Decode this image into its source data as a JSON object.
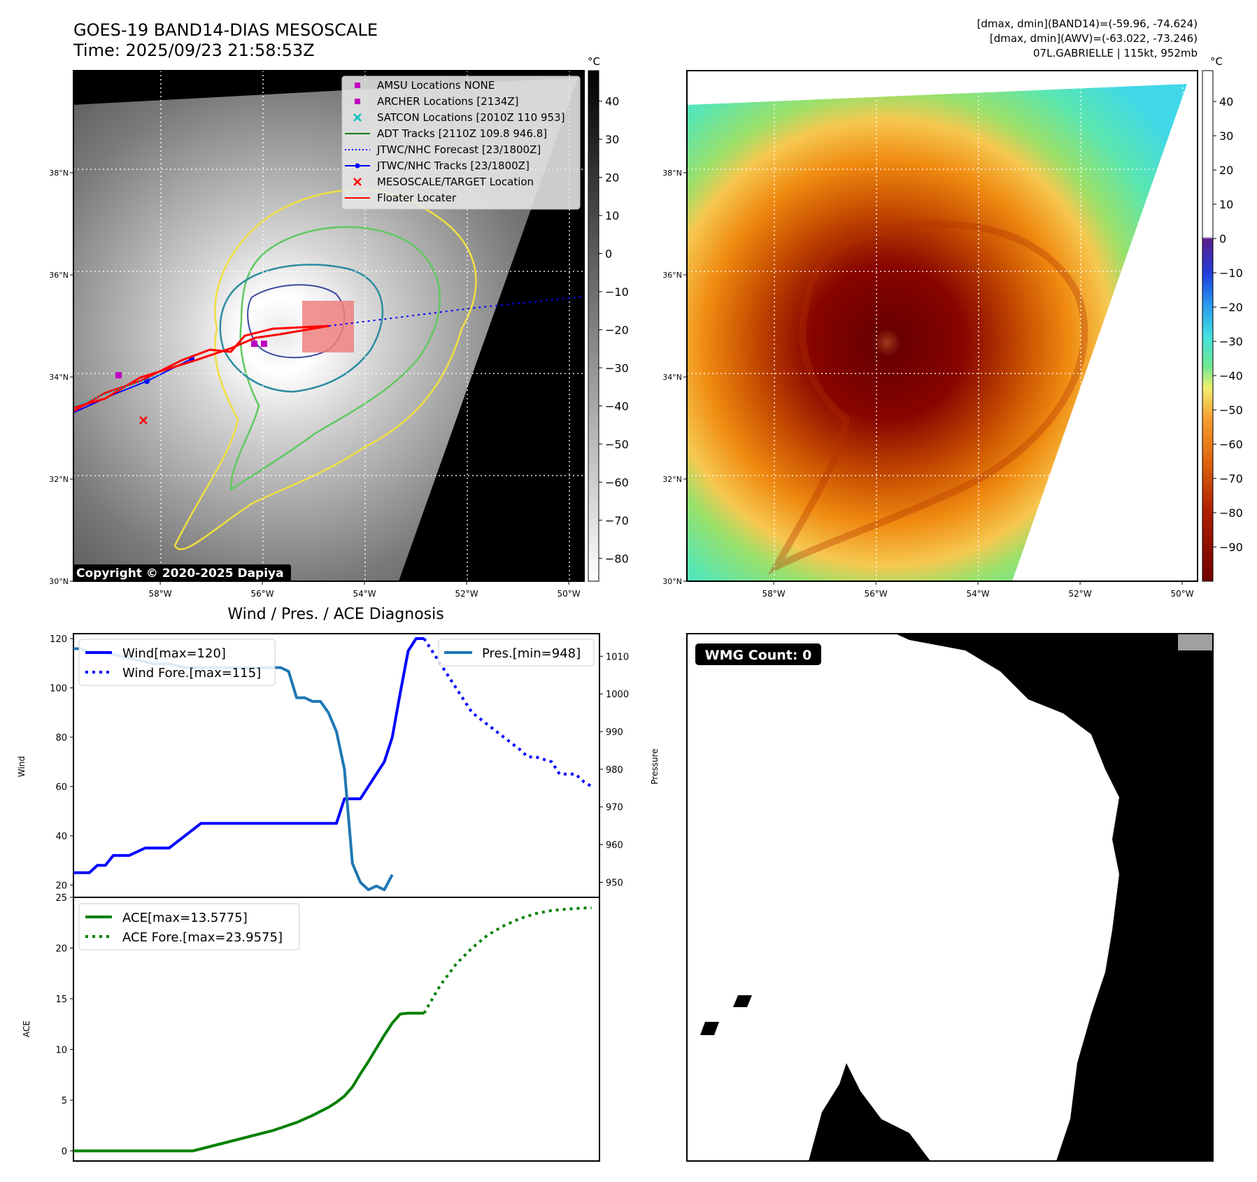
{
  "header": {
    "title_line1": "GOES-19 BAND14-DIAS MESOSCALE",
    "title_line2": "Time: 2025/09/23 21:58:53Z",
    "info_line1": "[dmax, dmin](BAND14)=(-59.96, -74.624)",
    "info_line2": "[dmax, dmin](AWV)=(-63.022, -73.246)",
    "info_line3": "07L.GABRIELLE | 115kt, 952mb"
  },
  "map": {
    "lat_labels": [
      "38°N",
      "36°N",
      "34°N",
      "32°N",
      "30°N"
    ],
    "lat_values": [
      38,
      36,
      34,
      32,
      30
    ],
    "lon_labels": [
      "58°W",
      "56°W",
      "54°W",
      "52°W",
      "50°W"
    ],
    "lon_values": [
      -58,
      -56,
      -54,
      -52,
      -50
    ],
    "extent": {
      "lon_min": -59.7,
      "lon_max": -49.7,
      "lat_min": 30,
      "lat_max": 40
    },
    "copyright": "Copyright © 2020-2025 Dapiya",
    "legend": [
      {
        "label": "AMSU Locations NONE",
        "marker": "square",
        "color": "#c000c0"
      },
      {
        "label": "ARCHER Locations [2134Z]",
        "marker": "square",
        "color": "#c000c0"
      },
      {
        "label": "SATCON Locations [2010Z 110 953]",
        "marker": "x",
        "color": "#00bfbf"
      },
      {
        "label": "ADT Tracks [2110Z 109.8 946.8]",
        "marker": "line",
        "color": "#008000"
      },
      {
        "label": "JTWC/NHC Forecast [23/1800Z]",
        "marker": "dotted",
        "color": "#0000ff"
      },
      {
        "label": "JTWC/NHC Tracks [23/1800Z]",
        "marker": "line-dot",
        "color": "#0000ff"
      },
      {
        "label": "MESOSCALE/TARGET Location",
        "marker": "x",
        "color": "#ff0000"
      },
      {
        "label": "Floater Locater",
        "marker": "line",
        "color": "#ff0000"
      }
    ]
  },
  "colorbar_left": {
    "unit": "°C",
    "ticks": [
      "40",
      "30",
      "20",
      "10",
      "0",
      "−10",
      "−20",
      "−30",
      "−40",
      "−50",
      "−60",
      "−70",
      "−80"
    ],
    "tick_values": [
      40,
      30,
      20,
      10,
      0,
      -10,
      -20,
      -30,
      -40,
      -50,
      -60,
      -70,
      -80
    ],
    "range": [
      48,
      -86
    ]
  },
  "colorbar_right": {
    "unit": "°C",
    "ticks": [
      "40",
      "30",
      "20",
      "10",
      "0",
      "−10",
      "−20",
      "−30",
      "−40",
      "−50",
      "−60",
      "−70",
      "−80",
      "−90"
    ],
    "tick_values": [
      40,
      30,
      20,
      10,
      0,
      -10,
      -20,
      -30,
      -40,
      -50,
      -60,
      -70,
      -80,
      -90
    ],
    "range": [
      49,
      -100
    ]
  },
  "wmg": {
    "label": "WMG Count: 0"
  },
  "chart_data": [
    {
      "type": "line",
      "title": "Wind / Pres. / ACE Diagnosis",
      "ylabel": "Wind",
      "ylabel_right": "Pressure",
      "ylim": [
        15,
        122
      ],
      "ylim_right": [
        946,
        1016
      ],
      "yticks": [
        20,
        40,
        60,
        80,
        100,
        120
      ],
      "yticks_right": [
        950,
        960,
        970,
        980,
        990,
        1000,
        1010
      ],
      "legend_left": [
        "Wind[max=120]",
        "Wind Fore.[max=115]"
      ],
      "legend_right": [
        "Pres.[min=948]"
      ],
      "xlim": [
        0,
        66
      ],
      "series": [
        {
          "name": "Wind[max=120]",
          "axis": "left",
          "style": "solid",
          "color": "#0000ff",
          "x": [
            0,
            2,
            3,
            4,
            5,
            6,
            7,
            9,
            10,
            12,
            14,
            16,
            17,
            18,
            20,
            22,
            24,
            25,
            27,
            28,
            30,
            32,
            33,
            34,
            35,
            36,
            37,
            38,
            39,
            40,
            41,
            42,
            43,
            44
          ],
          "values": [
            25,
            25,
            28,
            28,
            32,
            32,
            32,
            35,
            35,
            35,
            40,
            45,
            45,
            45,
            45,
            45,
            45,
            45,
            45,
            45,
            45,
            45,
            45,
            55,
            55,
            55,
            60,
            65,
            70,
            80,
            98,
            115,
            120,
            120
          ]
        },
        {
          "name": "Wind Fore.[max=115]",
          "axis": "left",
          "style": "dotted",
          "color": "#0000ff",
          "x": [
            44,
            45,
            46,
            48,
            50,
            52,
            54,
            56,
            57,
            58,
            60,
            61,
            62,
            63,
            64,
            65
          ],
          "values": [
            120,
            115,
            110,
            100,
            90,
            85,
            80,
            75,
            72,
            72,
            70,
            65,
            65,
            65,
            62,
            60
          ]
        },
        {
          "name": "Pres.[min=948]",
          "axis": "right",
          "style": "solid",
          "color": "#1f77b4",
          "x": [
            0,
            1,
            2,
            4,
            6,
            8,
            10,
            12,
            14,
            16,
            18,
            20,
            22,
            24,
            26,
            27,
            28,
            29,
            30,
            31,
            32,
            33,
            34,
            35,
            36,
            37,
            38,
            39,
            40
          ],
          "values": [
            1012,
            1012,
            1011,
            1011,
            1010,
            1009,
            1008,
            1008,
            1007,
            1007,
            1007,
            1007,
            1007,
            1007,
            1007,
            1006,
            999,
            999,
            998,
            998,
            995,
            990,
            980,
            955,
            950,
            948,
            949,
            948,
            952
          ]
        }
      ]
    },
    {
      "type": "line",
      "ylabel": "ACE",
      "ylim": [
        -1,
        25
      ],
      "yticks": [
        0,
        5,
        10,
        15,
        20,
        25
      ],
      "legend": [
        "ACE[max=13.5775]",
        "ACE Fore.[max=23.9575]"
      ],
      "xlim": [
        0,
        66
      ],
      "series": [
        {
          "name": "ACE[max=13.5775]",
          "style": "solid",
          "color": "#008000",
          "x": [
            0,
            5,
            10,
            15,
            20,
            25,
            28,
            30,
            32,
            33,
            34,
            35,
            36,
            37,
            38,
            39,
            40,
            41,
            42,
            43,
            44
          ],
          "values": [
            0,
            0,
            0,
            0,
            1,
            2,
            2.8,
            3.5,
            4.3,
            4.8,
            5.4,
            6.3,
            7.6,
            8.8,
            10.1,
            11.4,
            12.6,
            13.5,
            13.58,
            13.58,
            13.58
          ]
        },
        {
          "name": "ACE Fore.[max=23.9575]",
          "style": "dotted",
          "color": "#008000",
          "x": [
            44,
            46,
            48,
            50,
            52,
            54,
            56,
            58,
            60,
            62,
            64,
            65
          ],
          "values": [
            13.58,
            16.3,
            18.4,
            20.0,
            21.3,
            22.2,
            22.9,
            23.4,
            23.7,
            23.85,
            23.95,
            23.96
          ]
        }
      ]
    }
  ]
}
